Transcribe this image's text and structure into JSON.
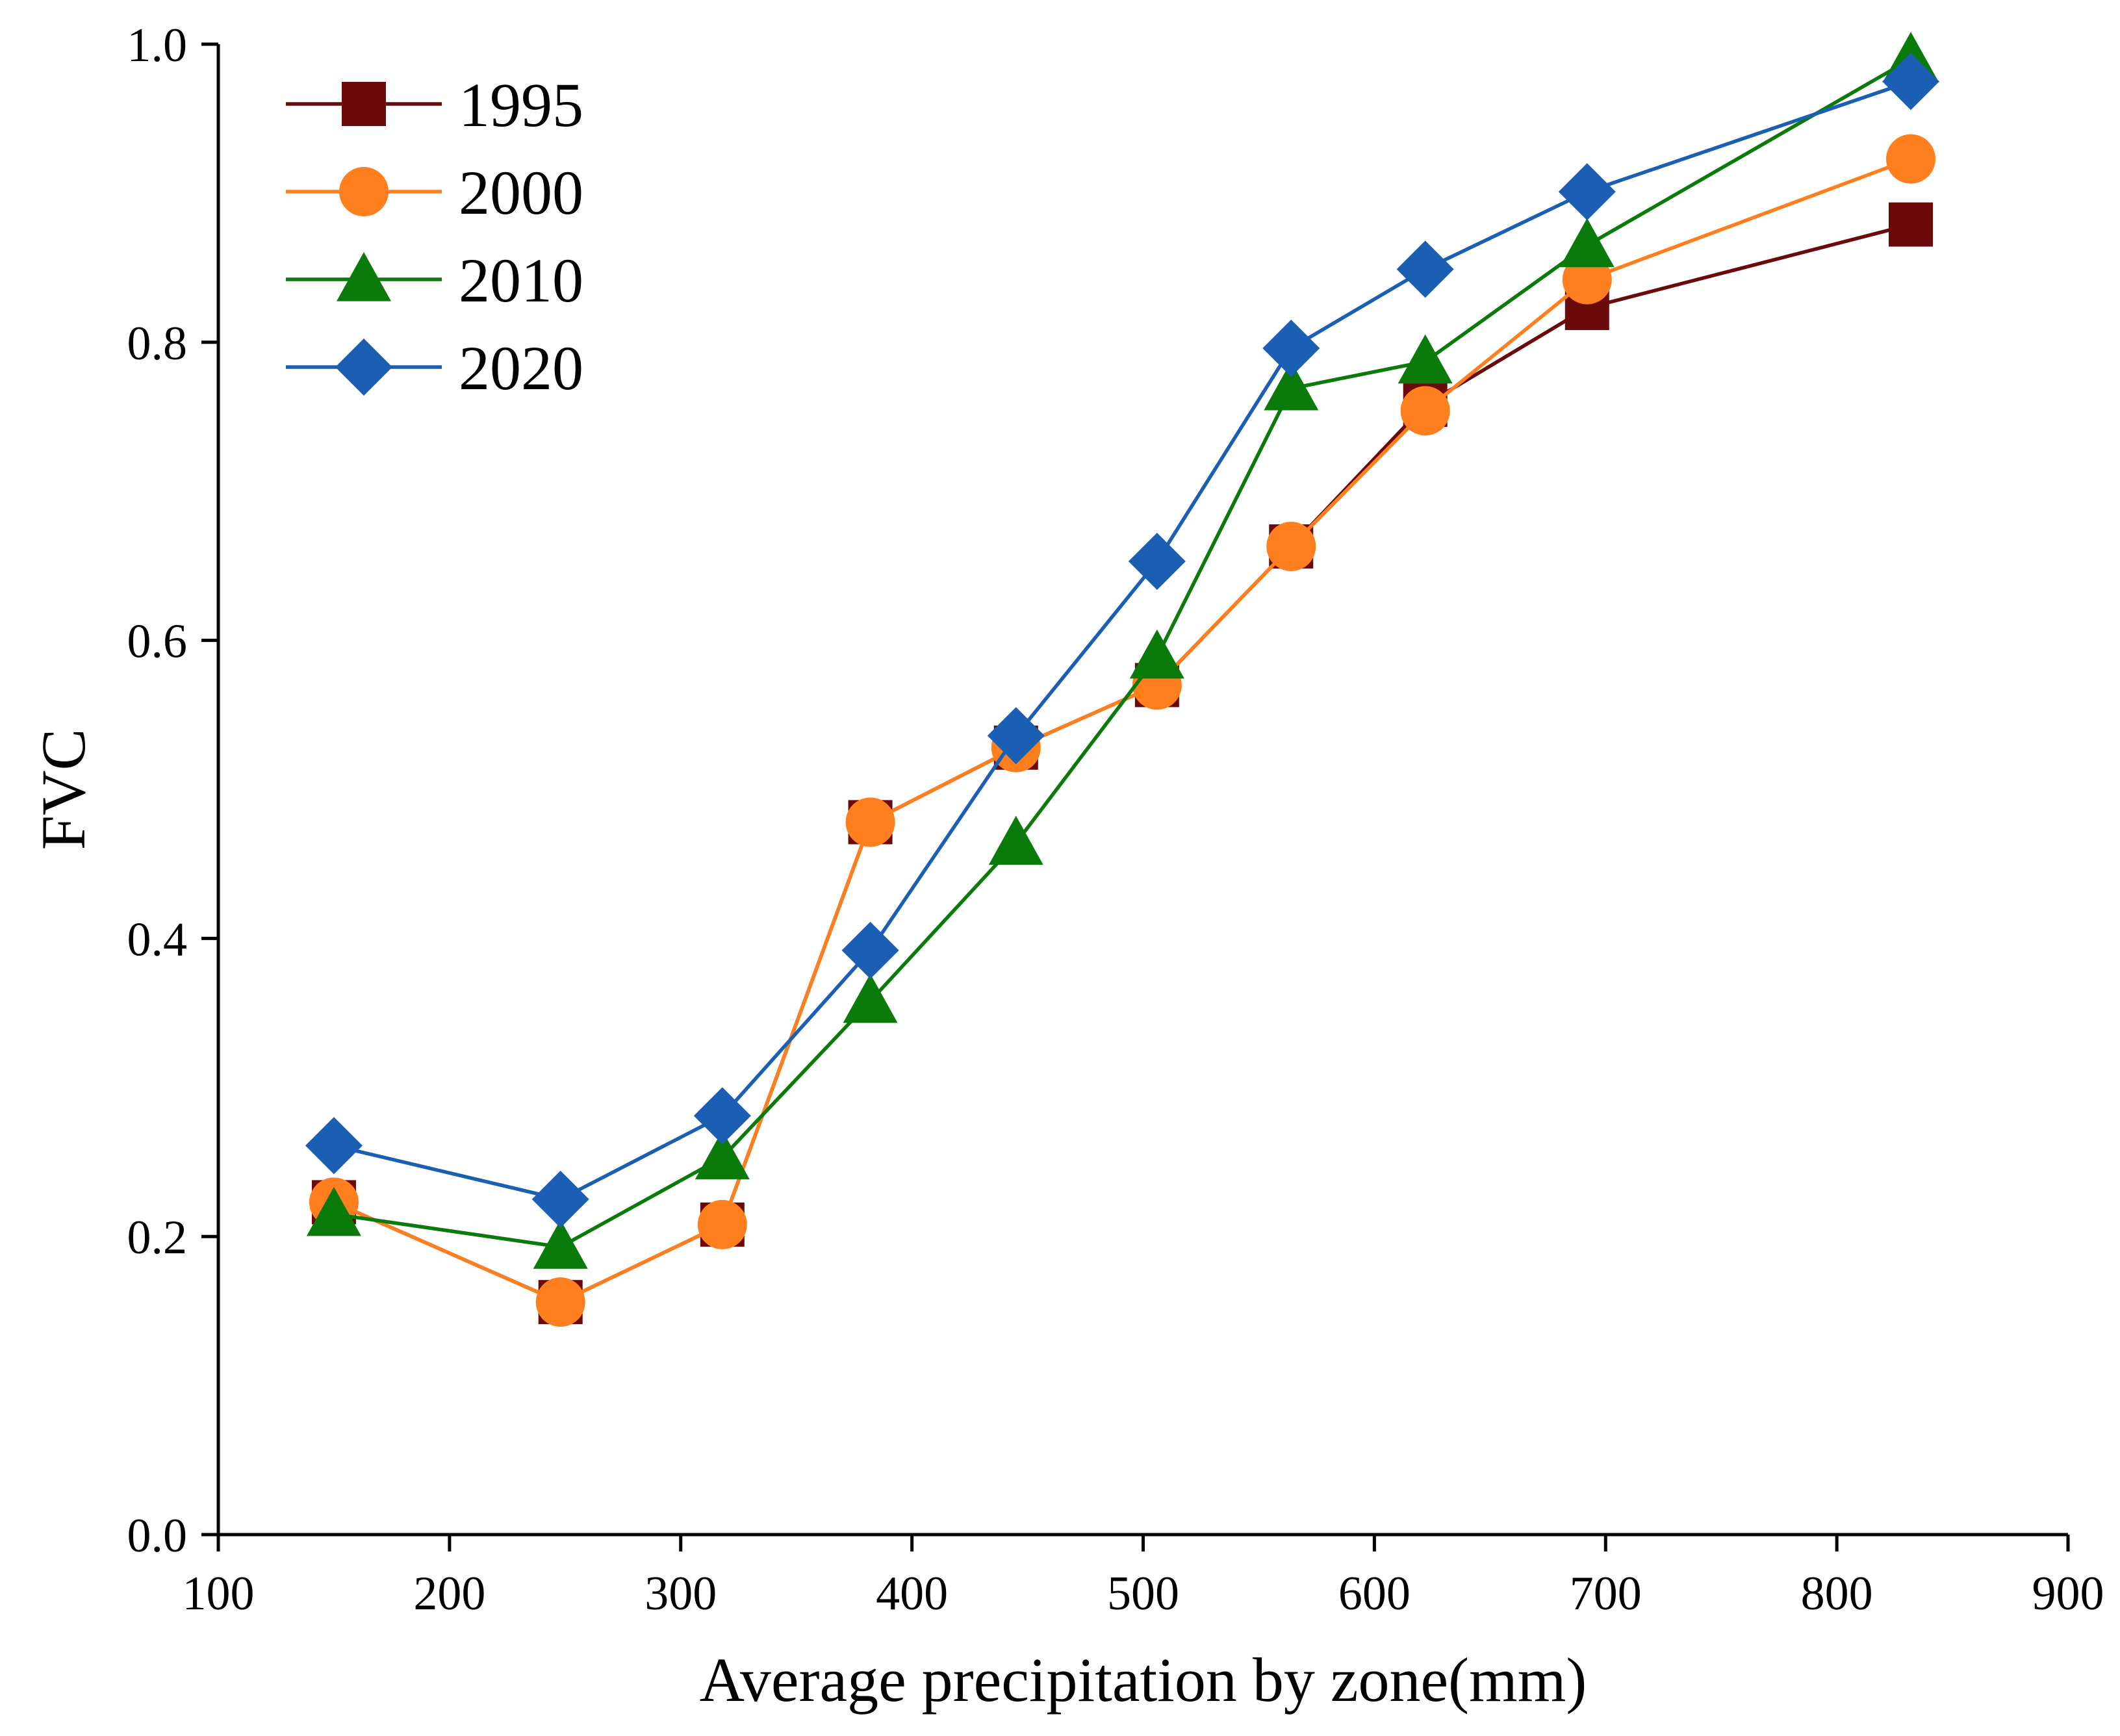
{
  "chart_data": {
    "type": "line",
    "title": "",
    "xlabel": "Average precipitation by zone(mm)",
    "ylabel": "FVC",
    "xlim": [
      100,
      900
    ],
    "ylim": [
      0.0,
      1.0
    ],
    "x_ticks": [
      100,
      200,
      300,
      400,
      500,
      600,
      700,
      800,
      900
    ],
    "x_tick_labels": [
      "100",
      "200",
      "300",
      "400",
      "500",
      "600",
      "700",
      "800",
      "900"
    ],
    "y_ticks": [
      0.0,
      0.2,
      0.4,
      0.6,
      0.8,
      1.0
    ],
    "y_tick_labels": [
      "0.0",
      "0.2",
      "0.4",
      "0.6",
      "0.8",
      "1.0"
    ],
    "grid": false,
    "legend_position": "top-left",
    "x": [
      150,
      248,
      318,
      382,
      445,
      506,
      564,
      622,
      692,
      832
    ],
    "series": [
      {
        "name": "1995",
        "marker": "square",
        "color": "#6b0a0a",
        "values": [
          0.223,
          0.156,
          0.208,
          0.478,
          0.528,
          0.57,
          0.663,
          0.758,
          0.823,
          0.879
        ]
      },
      {
        "name": "2000",
        "marker": "circle",
        "color": "#ff7f1e",
        "values": [
          0.223,
          0.156,
          0.208,
          0.478,
          0.528,
          0.57,
          0.663,
          0.754,
          0.842,
          0.923
        ]
      },
      {
        "name": "2010",
        "marker": "triangle",
        "color": "#0a7a0a",
        "values": [
          0.215,
          0.193,
          0.253,
          0.358,
          0.464,
          0.589,
          0.769,
          0.787,
          0.865,
          0.99
        ]
      },
      {
        "name": "2020",
        "marker": "diamond",
        "color": "#1a5fb4",
        "values": [
          0.261,
          0.225,
          0.281,
          0.392,
          0.536,
          0.653,
          0.796,
          0.849,
          0.901,
          0.975
        ]
      }
    ]
  }
}
